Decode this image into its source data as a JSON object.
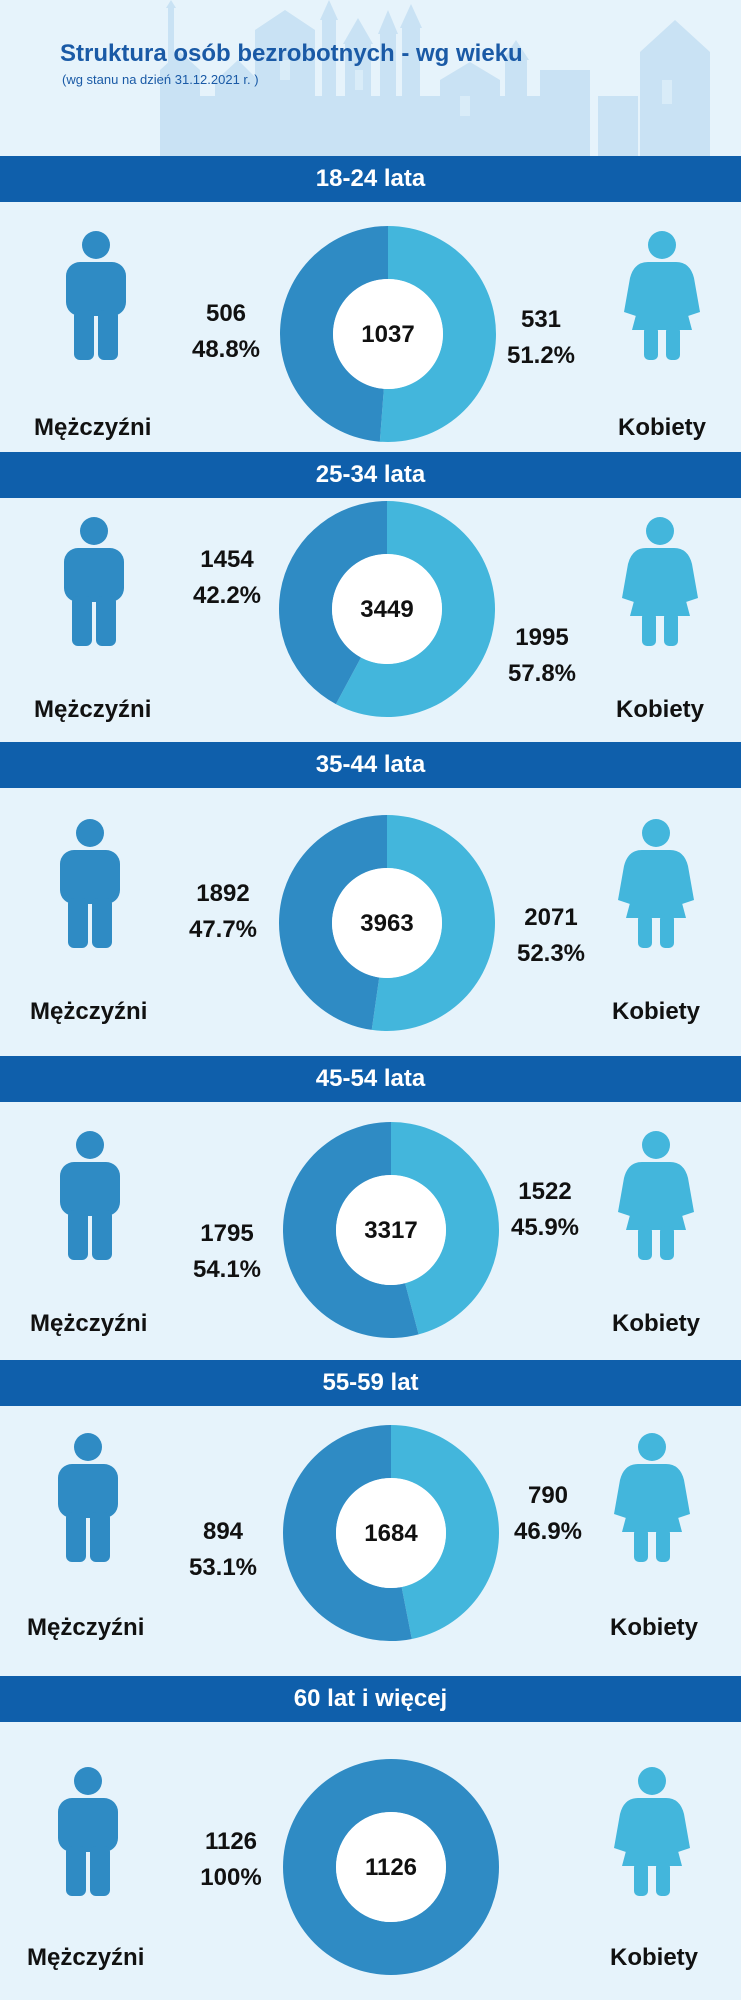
{
  "header": {
    "title": "Struktura osób bezrobotnych - wg wieku",
    "subtitle": "(wg stanu na dzień 31.12.2021 r. )"
  },
  "colors": {
    "band": "#0f5fab",
    "male": "#2f8bc4",
    "female": "#43b6dc",
    "background": "#e6f3fb"
  },
  "icons": {
    "male": "man-icon",
    "female": "woman-icon"
  },
  "chart_data": [
    {
      "type": "pie",
      "donut": true,
      "title": "18-24 lata",
      "total": "1037",
      "categories": [
        "Mężczyźni",
        "Kobiety"
      ],
      "values": [
        506,
        531
      ],
      "value_labels": [
        "506",
        "531"
      ],
      "percent_labels": [
        "48.8%",
        "51.2%"
      ]
    },
    {
      "type": "pie",
      "donut": true,
      "title": "25-34 lata",
      "total": "3449",
      "categories": [
        "Mężczyźni",
        "Kobiety"
      ],
      "values": [
        1454,
        1995
      ],
      "value_labels": [
        "1454",
        "1995"
      ],
      "percent_labels": [
        "42.2%",
        "57.8%"
      ]
    },
    {
      "type": "pie",
      "donut": true,
      "title": "35-44 lata",
      "total": "3963",
      "categories": [
        "Mężczyźni",
        "Kobiety"
      ],
      "values": [
        1892,
        2071
      ],
      "value_labels": [
        "1892",
        "2071"
      ],
      "percent_labels": [
        "47.7%",
        "52.3%"
      ]
    },
    {
      "type": "pie",
      "donut": true,
      "title": "45-54 lata",
      "total": "3317",
      "categories": [
        "Mężczyźni",
        "Kobiety"
      ],
      "values": [
        1795,
        1522
      ],
      "value_labels": [
        "1795",
        "1522"
      ],
      "percent_labels": [
        "54.1%",
        "45.9%"
      ]
    },
    {
      "type": "pie",
      "donut": true,
      "title": "55-59 lat",
      "total": "1684",
      "categories": [
        "Mężczyźni",
        "Kobiety"
      ],
      "values": [
        894,
        790
      ],
      "value_labels": [
        "894",
        "790"
      ],
      "percent_labels": [
        "53.1%",
        "46.9%"
      ]
    },
    {
      "type": "pie",
      "donut": true,
      "title": "60 lat i więcej",
      "total": "1126",
      "categories": [
        "Mężczyźni",
        "Kobiety"
      ],
      "values": [
        1126,
        0
      ],
      "value_labels": [
        "1126",
        ""
      ],
      "percent_labels": [
        "100%",
        ""
      ]
    }
  ]
}
